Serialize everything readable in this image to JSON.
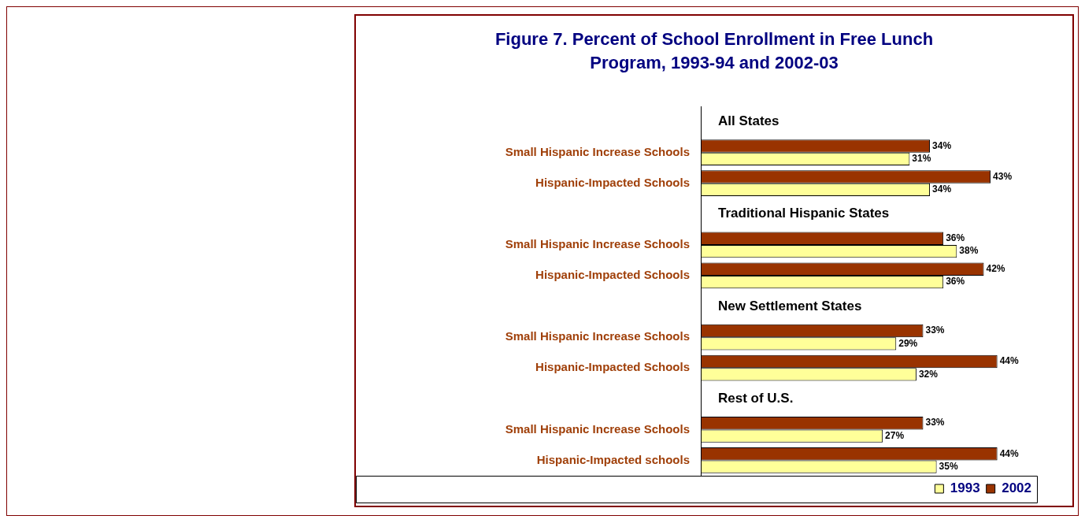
{
  "chart_data": {
    "type": "bar",
    "orientation": "horizontal",
    "title": "Figure 7. Percent of School Enrollment in Free Lunch Program, 1993-94 and 2002-03",
    "categories": [
      "All States",
      "Small Hispanic Increase Schools",
      "Hispanic-Impacted Schools",
      "Traditional Hispanic States",
      "Small Hispanic Increase Schools",
      "Hispanic-Impacted Schools",
      "New Settlement States",
      "Small Hispanic Increase Schools",
      "Hispanic-Impacted Schools",
      "Rest of U.S.",
      "Small Hispanic Increase Schools",
      "Hispanic-Impacted schools"
    ],
    "series": [
      {
        "name": "2002",
        "color": "#993300",
        "values": [
          null,
          34,
          43,
          null,
          36,
          42,
          null,
          33,
          44,
          null,
          33,
          44
        ],
        "value_labels": [
          null,
          "34%",
          "43%",
          null,
          "36%",
          "42%",
          null,
          "33%",
          "44%",
          null,
          "33%",
          "44%"
        ]
      },
      {
        "name": "1993",
        "color": "#ffff99",
        "values": [
          null,
          31,
          34,
          null,
          38,
          36,
          null,
          29,
          32,
          null,
          27,
          35
        ],
        "value_labels": [
          null,
          "31%",
          "34%",
          null,
          "38%",
          "36%",
          null,
          "29%",
          "32%",
          null,
          "27%",
          "35%"
        ]
      }
    ],
    "tick_labels": "y",
    "grid": false,
    "legend": "bottom right"
  }
}
